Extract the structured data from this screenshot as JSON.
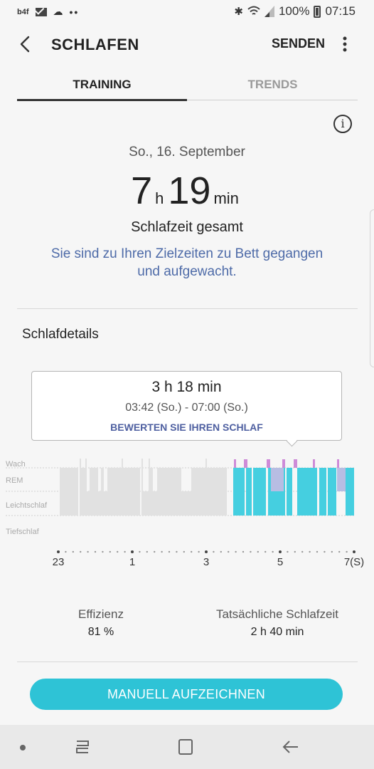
{
  "status_bar": {
    "carrier_icon_text": "b4f",
    "battery": "100%",
    "time": "07:15"
  },
  "app_bar": {
    "title": "SCHLAFEN",
    "send_label": "SENDEN"
  },
  "tabs": [
    {
      "label": "TRAINING",
      "selected": true
    },
    {
      "label": "TRENDS",
      "selected": false
    }
  ],
  "summary": {
    "date": "So., 16. September",
    "hours": "7",
    "hours_unit": "h",
    "minutes": "19",
    "minutes_unit": "min",
    "total_label": "Schlafzeit gesamt",
    "goal_message": "Sie sind zu Ihren Zielzeiten zu Bett gegangen und aufgewacht."
  },
  "details": {
    "title": "Schlafdetails",
    "tooltip": {
      "duration": "3 h 18 min",
      "range": "03:42 (So.) - 07:00 (So.)",
      "rate_label": "BEWERTEN SIE IHREN SCHLAF"
    }
  },
  "chart_data": {
    "type": "bar",
    "stages": [
      "Wach",
      "REM",
      "Leichtschlaf",
      "Tiefschlaf"
    ],
    "x_ticks": [
      "23",
      "1",
      "3",
      "5",
      "7(S)"
    ],
    "colors": {
      "inactive": "#e1e1e1",
      "light": "#45cfe0",
      "rem": "#b7bde3",
      "awake": "#ce8bd8"
    }
  },
  "stats": {
    "efficiency_label": "Effizienz",
    "efficiency_value": "81 %",
    "actual_label": "Tatsächliche Schlafzeit",
    "actual_value": "2 h 40 min"
  },
  "actions": {
    "manual_label": "MANUELL AUFZEICHNEN"
  },
  "colors": {
    "accent": "#2ec3d6",
    "link": "#4e6ba8"
  }
}
